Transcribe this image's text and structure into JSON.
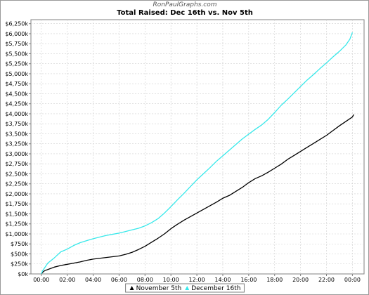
{
  "chart_data": {
    "type": "line",
    "site": "RonPaulGraphs.com",
    "title": "Total Raised: Dec 16th vs. Nov 5th",
    "xlabel": "",
    "ylabel": "",
    "x_ticks": [
      "00:00",
      "02:00",
      "04:00",
      "06:00",
      "08:00",
      "10:00",
      "12:00",
      "14:00",
      "16:00",
      "18:00",
      "20:00",
      "22:00",
      "00:00"
    ],
    "xlim_hours": [
      -0.8,
      24.9
    ],
    "y_ticks": [
      "$0k",
      "$250k",
      "$500k",
      "$750k",
      "$1,000k",
      "$1,250k",
      "$1,500k",
      "$1,750k",
      "$2,000k",
      "$2,250k",
      "$2,500k",
      "$2,750k",
      "$3,000k",
      "$3,250k",
      "$3,500k",
      "$3,750k",
      "$4,000k",
      "$4,250k",
      "$4,500k",
      "$4,750k",
      "$5,000k",
      "$5,250k",
      "$5,500k",
      "$5,750k",
      "$6,000k",
      "$6,250k"
    ],
    "ylim": [
      0,
      6350
    ],
    "y_unit": "thousands of dollars",
    "grid": true,
    "legend_position": "bottom",
    "series": [
      {
        "name": "November 5th",
        "color": "#000000",
        "marker": "triangle",
        "points": [
          [
            0,
            0
          ],
          [
            0.1,
            40
          ],
          [
            0.25,
            80
          ],
          [
            0.5,
            110
          ],
          [
            1,
            170
          ],
          [
            1.5,
            210
          ],
          [
            2,
            240
          ],
          [
            2.5,
            270
          ],
          [
            3,
            300
          ],
          [
            3.5,
            340
          ],
          [
            4,
            370
          ],
          [
            4.5,
            390
          ],
          [
            5,
            410
          ],
          [
            5.5,
            430
          ],
          [
            6,
            450
          ],
          [
            6.5,
            490
          ],
          [
            7,
            540
          ],
          [
            7.5,
            610
          ],
          [
            8,
            690
          ],
          [
            8.5,
            790
          ],
          [
            9,
            890
          ],
          [
            9.5,
            1000
          ],
          [
            10,
            1130
          ],
          [
            10.5,
            1240
          ],
          [
            11,
            1340
          ],
          [
            11.5,
            1430
          ],
          [
            12,
            1520
          ],
          [
            12.5,
            1610
          ],
          [
            13,
            1700
          ],
          [
            13.5,
            1790
          ],
          [
            14,
            1890
          ],
          [
            14.5,
            1960
          ],
          [
            15,
            2060
          ],
          [
            15.5,
            2160
          ],
          [
            16,
            2280
          ],
          [
            16.5,
            2380
          ],
          [
            17,
            2450
          ],
          [
            17.5,
            2540
          ],
          [
            18,
            2640
          ],
          [
            18.5,
            2740
          ],
          [
            19,
            2860
          ],
          [
            19.5,
            2960
          ],
          [
            20,
            3060
          ],
          [
            20.5,
            3160
          ],
          [
            21,
            3260
          ],
          [
            21.5,
            3360
          ],
          [
            22,
            3460
          ],
          [
            22.5,
            3580
          ],
          [
            23,
            3700
          ],
          [
            23.5,
            3810
          ],
          [
            24,
            3920
          ],
          [
            24.1,
            3980
          ]
        ]
      },
      {
        "name": "December 16th",
        "color": "#37e8ea",
        "marker": "triangle",
        "points": [
          [
            0,
            0
          ],
          [
            0.1,
            80
          ],
          [
            0.25,
            150
          ],
          [
            0.5,
            270
          ],
          [
            1,
            400
          ],
          [
            1.5,
            550
          ],
          [
            2,
            620
          ],
          [
            2.5,
            710
          ],
          [
            3,
            780
          ],
          [
            3.5,
            830
          ],
          [
            4,
            880
          ],
          [
            4.5,
            920
          ],
          [
            5,
            960
          ],
          [
            5.5,
            990
          ],
          [
            6,
            1020
          ],
          [
            6.5,
            1060
          ],
          [
            7,
            1100
          ],
          [
            7.5,
            1140
          ],
          [
            8,
            1200
          ],
          [
            8.5,
            1280
          ],
          [
            9,
            1380
          ],
          [
            9.5,
            1520
          ],
          [
            10,
            1680
          ],
          [
            10.5,
            1850
          ],
          [
            11,
            2010
          ],
          [
            11.5,
            2180
          ],
          [
            12,
            2350
          ],
          [
            12.5,
            2500
          ],
          [
            13,
            2650
          ],
          [
            13.5,
            2810
          ],
          [
            14,
            2950
          ],
          [
            14.5,
            3090
          ],
          [
            15,
            3230
          ],
          [
            15.5,
            3370
          ],
          [
            16,
            3490
          ],
          [
            16.5,
            3610
          ],
          [
            17,
            3720
          ],
          [
            17.5,
            3860
          ],
          [
            18,
            4030
          ],
          [
            18.5,
            4210
          ],
          [
            19,
            4360
          ],
          [
            19.5,
            4520
          ],
          [
            20,
            4680
          ],
          [
            20.5,
            4840
          ],
          [
            21,
            4980
          ],
          [
            21.5,
            5130
          ],
          [
            22,
            5270
          ],
          [
            22.5,
            5420
          ],
          [
            23,
            5560
          ],
          [
            23.5,
            5720
          ],
          [
            23.8,
            5860
          ],
          [
            24,
            6030
          ]
        ]
      }
    ]
  }
}
